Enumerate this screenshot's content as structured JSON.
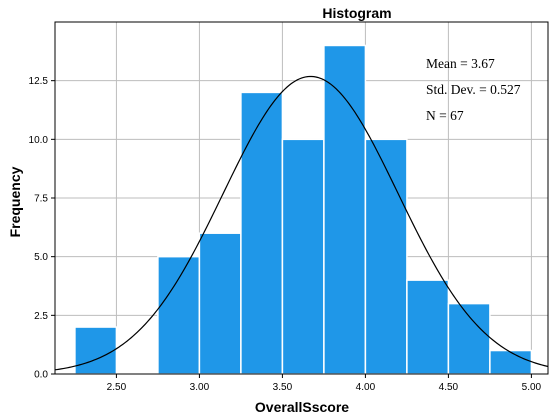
{
  "chart_data": {
    "type": "bar",
    "title": "Histogram",
    "xlabel": "OverallSscore",
    "ylabel": "Frequency",
    "bin_width": 0.25,
    "bins": [
      {
        "start": 2.25,
        "end": 2.5,
        "count": 2
      },
      {
        "start": 2.5,
        "end": 2.75,
        "count": 0
      },
      {
        "start": 2.75,
        "end": 3.0,
        "count": 5
      },
      {
        "start": 3.0,
        "end": 3.25,
        "count": 6
      },
      {
        "start": 3.25,
        "end": 3.5,
        "count": 12
      },
      {
        "start": 3.5,
        "end": 3.75,
        "count": 10
      },
      {
        "start": 3.75,
        "end": 4.0,
        "count": 14
      },
      {
        "start": 4.0,
        "end": 4.25,
        "count": 10
      },
      {
        "start": 4.25,
        "end": 4.5,
        "count": 4
      },
      {
        "start": 4.5,
        "end": 4.75,
        "count": 3
      },
      {
        "start": 4.75,
        "end": 5.0,
        "count": 1
      }
    ],
    "x_ticks": [
      "2.50",
      "3.00",
      "3.50",
      "4.00",
      "4.50",
      "5.00"
    ],
    "y_ticks": [
      "0.0",
      "2.5",
      "5.0",
      "7.5",
      "10.0",
      "12.5"
    ],
    "xlim": [
      2.13,
      5.1
    ],
    "ylim": [
      0,
      15
    ],
    "grid": true,
    "bar_color": "#1f97e8",
    "normal_curve": {
      "mean": 3.67,
      "sd": 0.527,
      "n": 67
    },
    "stats": {
      "mean": "Mean = 3.67",
      "sd": "Std. Dev. = 0.527",
      "n": "N = 67"
    }
  }
}
